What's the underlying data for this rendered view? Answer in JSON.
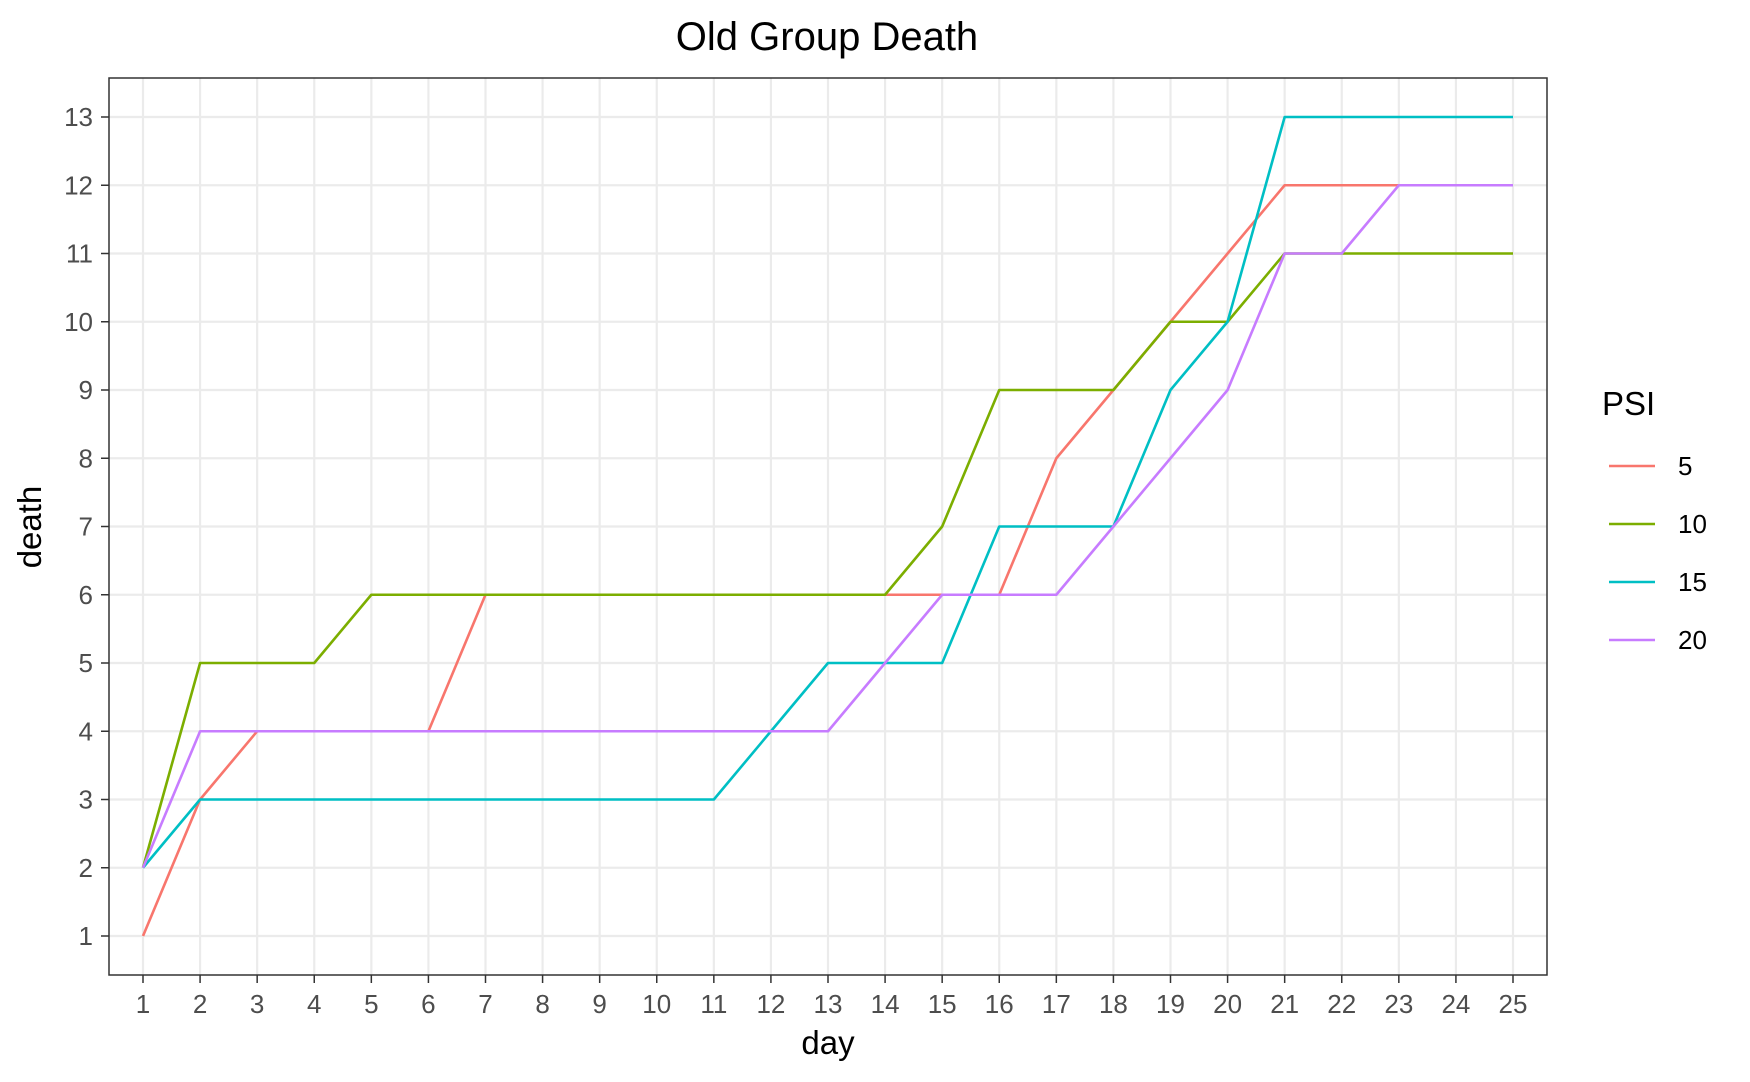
{
  "chart_data": {
    "type": "line",
    "title": "Old Group Death",
    "xlabel": "day",
    "ylabel": "death",
    "x": [
      1,
      2,
      3,
      4,
      5,
      6,
      7,
      8,
      9,
      10,
      11,
      12,
      13,
      14,
      15,
      16,
      17,
      18,
      19,
      20,
      21,
      22,
      23,
      24,
      25
    ],
    "xlim": [
      1,
      25
    ],
    "ylim": [
      1,
      13
    ],
    "y_ticks": [
      1,
      2,
      3,
      4,
      5,
      6,
      7,
      8,
      9,
      10,
      11,
      12,
      13
    ],
    "grid": true,
    "legend": {
      "title": "PSI",
      "position": "right"
    },
    "series": [
      {
        "name": "5",
        "color": "#F8766D",
        "values": [
          1,
          3,
          4,
          4,
          4,
          4,
          6,
          6,
          6,
          6,
          6,
          6,
          6,
          6,
          6,
          6,
          8,
          9,
          10,
          11,
          12,
          12,
          12,
          12,
          12
        ]
      },
      {
        "name": "10",
        "color": "#7CAE00",
        "values": [
          2,
          5,
          5,
          5,
          6,
          6,
          6,
          6,
          6,
          6,
          6,
          6,
          6,
          6,
          7,
          9,
          9,
          9,
          10,
          10,
          11,
          11,
          11,
          11,
          11
        ]
      },
      {
        "name": "15",
        "color": "#00BFC4",
        "values": [
          2,
          3,
          3,
          3,
          3,
          3,
          3,
          3,
          3,
          3,
          3,
          4,
          5,
          5,
          5,
          7,
          7,
          7,
          9,
          10,
          13,
          13,
          13,
          13,
          13
        ]
      },
      {
        "name": "20",
        "color": "#C77CFF",
        "values": [
          2,
          4,
          4,
          4,
          4,
          4,
          4,
          4,
          4,
          4,
          4,
          4,
          4,
          5,
          6,
          6,
          6,
          7,
          8,
          9,
          11,
          11,
          12,
          12,
          12
        ]
      }
    ]
  }
}
